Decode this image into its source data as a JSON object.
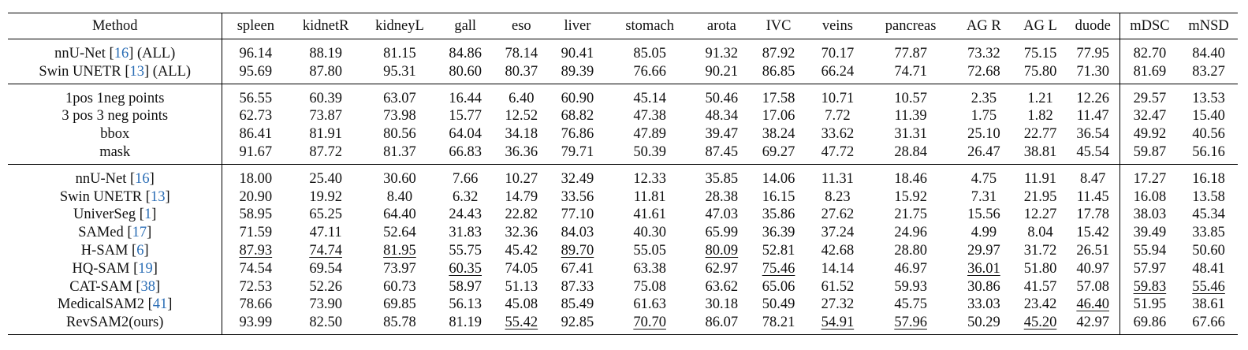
{
  "table": {
    "columns": [
      "Method",
      "spleen",
      "kidnetR",
      "kidneyL",
      "gall",
      "eso",
      "liver",
      "stomach",
      "arota",
      "IVC",
      "veins",
      "pancreas",
      "AG R",
      "AG L",
      "duode",
      "mDSC",
      "mNSD"
    ],
    "groups": [
      {
        "rows": [
          {
            "method": "nnU-Net",
            "cite": "16",
            "suffix": " (ALL)",
            "values": [
              "96.14",
              "88.19",
              "81.15",
              "84.86",
              "78.14",
              "90.41",
              "85.05",
              "91.32",
              "87.92",
              "70.17",
              "77.87",
              "73.32",
              "75.15",
              "77.95",
              "82.70",
              "84.40"
            ]
          },
          {
            "method": "Swin UNETR",
            "cite": "13",
            "suffix": " (ALL)",
            "values": [
              "95.69",
              "87.80",
              "95.31",
              "80.60",
              "80.37",
              "89.39",
              "76.66",
              "90.21",
              "86.85",
              "66.24",
              "74.71",
              "72.68",
              "75.80",
              "71.30",
              "81.69",
              "83.27"
            ]
          }
        ]
      },
      {
        "rows": [
          {
            "method": "1pos 1neg points",
            "values": [
              "56.55",
              "60.39",
              "63.07",
              "16.44",
              "6.40",
              "60.90",
              "45.14",
              "50.46",
              "17.58",
              "10.71",
              "10.57",
              "2.35",
              "1.21",
              "12.26",
              "29.57",
              "13.53"
            ]
          },
          {
            "method": "3 pos 3 neg points",
            "values": [
              "62.73",
              "73.87",
              "73.98",
              "15.77",
              "12.52",
              "68.82",
              "47.38",
              "48.34",
              "17.06",
              "7.72",
              "11.39",
              "1.75",
              "1.82",
              "11.47",
              "32.47",
              "15.40"
            ]
          },
          {
            "method": "bbox",
            "values": [
              "86.41",
              "81.91",
              "80.56",
              "64.04",
              "34.18",
              "76.86",
              "47.89",
              "39.47",
              "38.24",
              "33.62",
              "31.31",
              "25.10",
              "22.77",
              "36.54",
              "49.92",
              "40.56"
            ]
          },
          {
            "method": "mask",
            "values": [
              "91.67",
              "87.72",
              "81.37",
              "66.83",
              "36.36",
              "79.71",
              "50.39",
              "87.45",
              "69.27",
              "47.72",
              "28.84",
              "26.47",
              "38.81",
              "45.54",
              "59.87",
              "56.16"
            ]
          }
        ]
      },
      {
        "rows": [
          {
            "method": "nnU-Net",
            "cite": "16",
            "values": [
              "18.00",
              "25.40",
              "30.60",
              "7.66",
              "10.27",
              "32.49",
              "12.33",
              "35.85",
              "14.06",
              "11.31",
              "18.46",
              "4.75",
              "11.91",
              "8.47",
              "17.27",
              "16.18"
            ]
          },
          {
            "method": "Swin UNETR",
            "cite": "13",
            "values": [
              "20.90",
              "19.92",
              "8.40",
              "6.32",
              "14.79",
              "33.56",
              "11.81",
              "28.38",
              "16.15",
              "8.23",
              "15.92",
              "7.31",
              "21.95",
              "11.45",
              "16.08",
              "13.58"
            ]
          },
          {
            "method": "UniverSeg",
            "cite": "1",
            "values": [
              "58.95",
              "65.25",
              "64.40",
              "24.43",
              "22.82",
              "77.10",
              "41.61",
              "47.03",
              "35.86",
              "27.62",
              "21.75",
              "15.56",
              "12.27",
              "17.78",
              "38.03",
              "45.34"
            ]
          },
          {
            "method": "SAMed",
            "cite": "17",
            "values": [
              "71.59",
              "47.11",
              "52.64",
              "31.83",
              "32.36",
              "84.03",
              "40.30",
              "65.99",
              "36.39",
              "37.24",
              "24.96",
              "4.99",
              "8.04",
              "15.42",
              "39.49",
              "33.85"
            ]
          },
          {
            "method": "H-SAM",
            "cite": "6",
            "values": [
              "87.93",
              "74.74",
              "81.95",
              "55.75",
              "45.42",
              "89.70",
              "55.05",
              "80.09",
              "52.81",
              "42.68",
              "28.80",
              "29.97",
              "31.72",
              "26.51",
              "55.94",
              "50.60"
            ],
            "underline": [
              0,
              1,
              2,
              5,
              7
            ]
          },
          {
            "method": "HQ-SAM",
            "cite": "19",
            "values": [
              "74.54",
              "69.54",
              "73.97",
              "60.35",
              "74.05",
              "67.41",
              "63.38",
              "62.97",
              "75.46",
              "14.14",
              "46.97",
              "36.01",
              "51.80",
              "40.97",
              "57.97",
              "48.41"
            ],
            "bold": [
              4,
              12
            ],
            "underline": [
              3,
              8,
              11
            ]
          },
          {
            "method": "CAT-SAM",
            "cite": "38",
            "values": [
              "72.53",
              "52.26",
              "60.73",
              "58.97",
              "51.13",
              "87.33",
              "75.08",
              "63.62",
              "65.06",
              "61.52",
              "59.93",
              "30.86",
              "41.57",
              "57.08",
              "59.83",
              "55.46"
            ],
            "bold": [
              6,
              9,
              10,
              13
            ],
            "underline": [
              14,
              15
            ]
          },
          {
            "method": "MedicalSAM2",
            "cite": "41",
            "values": [
              "78.66",
              "73.90",
              "69.85",
              "56.13",
              "45.08",
              "85.49",
              "61.63",
              "30.18",
              "50.49",
              "27.32",
              "45.75",
              "33.03",
              "23.42",
              "46.40",
              "51.95",
              "38.61"
            ],
            "underline": [
              13
            ]
          },
          {
            "method": "RevSAM2(ours)",
            "values": [
              "93.99",
              "82.50",
              "85.78",
              "81.19",
              "55.42",
              "92.85",
              "70.70",
              "86.07",
              "78.21",
              "54.91",
              "57.96",
              "50.29",
              "45.20",
              "42.97",
              "69.86",
              "67.66"
            ],
            "bold": [
              0,
              1,
              2,
              3,
              5,
              7,
              8,
              11,
              14,
              15
            ],
            "underline": [
              4,
              6,
              9,
              10,
              12
            ]
          }
        ]
      }
    ]
  }
}
